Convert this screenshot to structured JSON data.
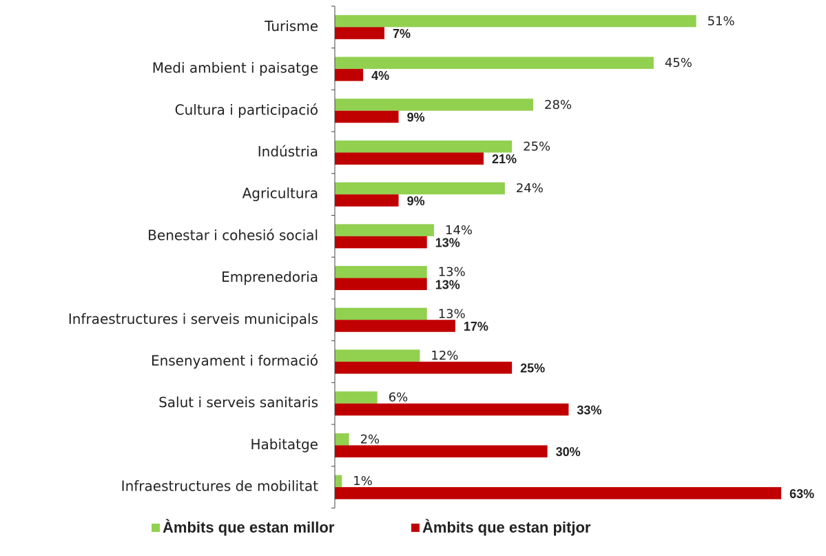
{
  "chart_data": {
    "type": "hbar",
    "categories": [
      "Turisme",
      "Medi ambient i paisatge",
      "Cultura i participació",
      "Indústria",
      "Agricultura",
      "Benestar i cohesió social",
      "Emprenedoria",
      "Infraestructures i serveis municipals",
      "Ensenyament i formació",
      "Salut i serveis sanitaris",
      "Habitatge",
      "Infraestructures de mobilitat"
    ],
    "series": [
      {
        "name": "Àmbits que estan millor",
        "color": "#92d050",
        "values": [
          51,
          45,
          28,
          25,
          24,
          14,
          13,
          13,
          12,
          6,
          2,
          1
        ],
        "value_labels": [
          "51%",
          "45%",
          "28%",
          "25%",
          "24%",
          "14%",
          "13%",
          "13%",
          "12%",
          "6%",
          "2%",
          "1%"
        ]
      },
      {
        "name": "Àmbits que estan pitjor",
        "color": "#c00000",
        "values": [
          7,
          4,
          9,
          21,
          9,
          13,
          13,
          17,
          25,
          33,
          30,
          63
        ],
        "value_labels": [
          "7%",
          "4%",
          "9%",
          "21%",
          "9%",
          "13%",
          "13%",
          "17%",
          "25%",
          "33%",
          "30%",
          "63%"
        ]
      }
    ],
    "legend": "bottom"
  }
}
